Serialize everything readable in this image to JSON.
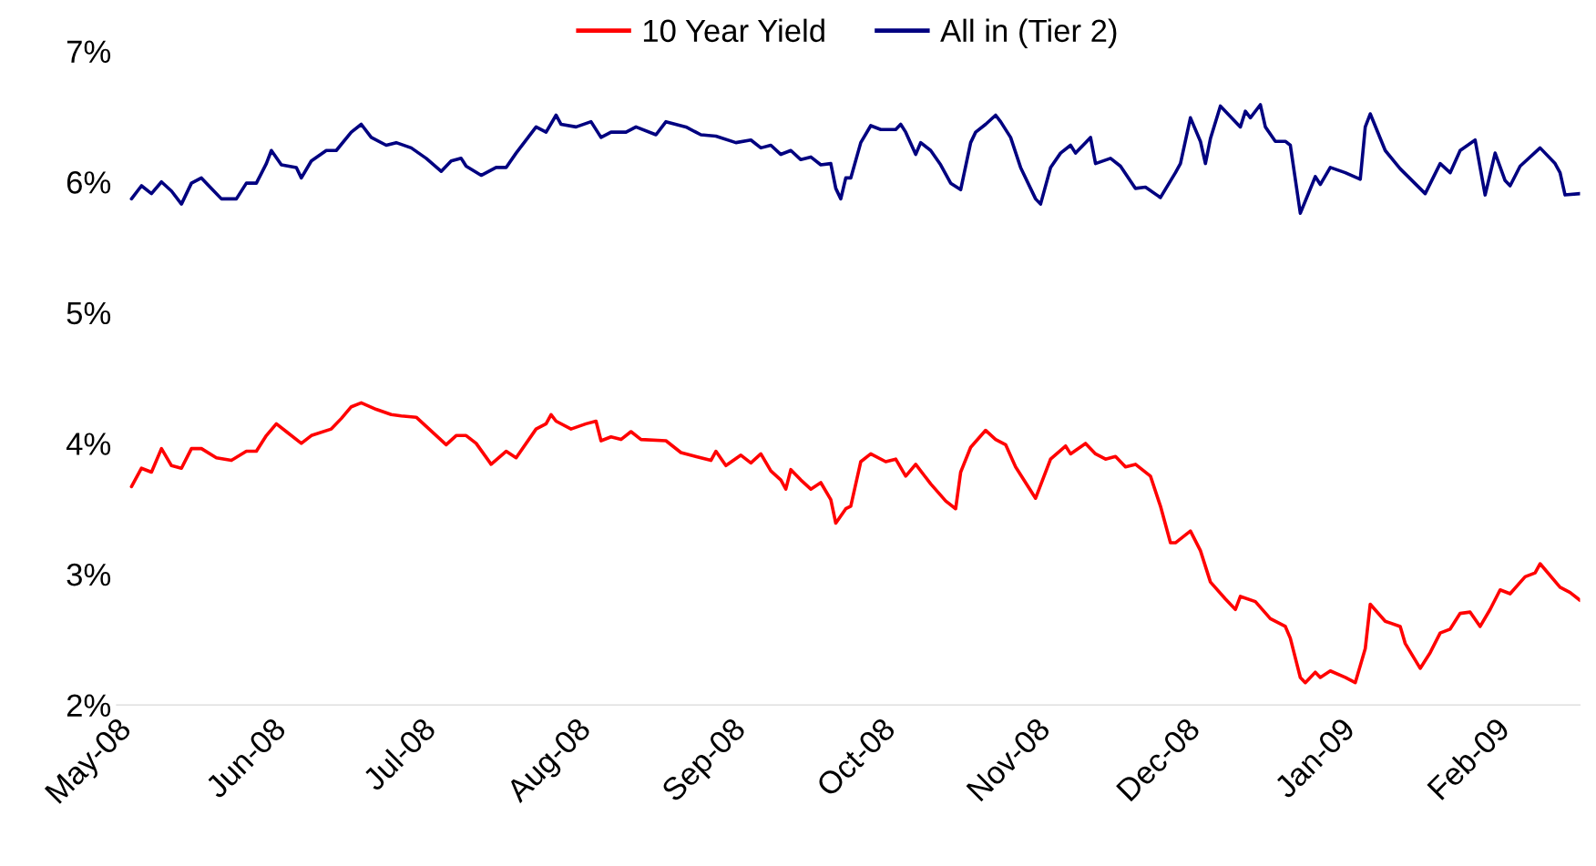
{
  "chart_data": {
    "type": "line",
    "legend": "top",
    "grid": false,
    "marker": "none",
    "line_style": "solid",
    "xticks": [
      {
        "value": "2008-05-01",
        "label": "May-08"
      },
      {
        "value": "2008-06-01",
        "label": "Jun-08"
      },
      {
        "value": "2008-07-01",
        "label": "Jul-08"
      },
      {
        "value": "2008-08-01",
        "label": "Aug-08"
      },
      {
        "value": "2008-09-01",
        "label": "Sep-08"
      },
      {
        "value": "2008-10-01",
        "label": "Oct-08"
      },
      {
        "value": "2008-11-01",
        "label": "Nov-08"
      },
      {
        "value": "2008-12-01",
        "label": "Dec-08"
      },
      {
        "value": "2009-01-01",
        "label": "Jan-09"
      },
      {
        "value": "2009-02-01",
        "label": "Feb-09"
      }
    ],
    "xlim": [
      "2008-05-01",
      "2009-02-18"
    ],
    "ylim": [
      2,
      7
    ],
    "yticks": [
      {
        "value": 2,
        "label": "2%"
      },
      {
        "value": 3,
        "label": "3%"
      },
      {
        "value": 4,
        "label": "4%"
      },
      {
        "value": 5,
        "label": "5%"
      },
      {
        "value": 6,
        "label": "6%"
      },
      {
        "value": 7,
        "label": "7%"
      }
    ],
    "series": [
      {
        "name": "10 Year Yield",
        "color": "#ff0000",
        "x": [
          "2008-05-04",
          "2008-05-06",
          "2008-05-08",
          "2008-05-10",
          "2008-05-12",
          "2008-05-14",
          "2008-05-16",
          "2008-05-18",
          "2008-05-21",
          "2008-05-24",
          "2008-05-27",
          "2008-05-29",
          "2008-05-31",
          "2008-06-02",
          "2008-06-04",
          "2008-06-07",
          "2008-06-09",
          "2008-06-13",
          "2008-06-15",
          "2008-06-17",
          "2008-06-19",
          "2008-06-22",
          "2008-06-25",
          "2008-06-27",
          "2008-06-30",
          "2008-07-06",
          "2008-07-08",
          "2008-07-10",
          "2008-07-12",
          "2008-07-15",
          "2008-07-18",
          "2008-07-20",
          "2008-07-24",
          "2008-07-26",
          "2008-07-27",
          "2008-07-28",
          "2008-07-31",
          "2008-08-03",
          "2008-08-05",
          "2008-08-06",
          "2008-08-08",
          "2008-08-10",
          "2008-08-12",
          "2008-08-14",
          "2008-08-19",
          "2008-08-22",
          "2008-08-28",
          "2008-08-29",
          "2008-08-31",
          "2008-09-03",
          "2008-09-05",
          "2008-09-07",
          "2008-09-09",
          "2008-09-11",
          "2008-09-12",
          "2008-09-13",
          "2008-09-15",
          "2008-09-17",
          "2008-09-19",
          "2008-09-21",
          "2008-09-22",
          "2008-09-24",
          "2008-09-25",
          "2008-09-27",
          "2008-09-29",
          "2008-10-02",
          "2008-10-04",
          "2008-10-06",
          "2008-10-08",
          "2008-10-11",
          "2008-10-14",
          "2008-10-16",
          "2008-10-17",
          "2008-10-19",
          "2008-10-22",
          "2008-10-24",
          "2008-10-26",
          "2008-10-28",
          "2008-11-01",
          "2008-11-04",
          "2008-11-07",
          "2008-11-08",
          "2008-11-11",
          "2008-11-13",
          "2008-11-15",
          "2008-11-17",
          "2008-11-19",
          "2008-11-21",
          "2008-11-24",
          "2008-11-26",
          "2008-11-28",
          "2008-11-29",
          "2008-12-02",
          "2008-12-04",
          "2008-12-06",
          "2008-12-09",
          "2008-12-11",
          "2008-12-12",
          "2008-12-15",
          "2008-12-18",
          "2008-12-21",
          "2008-12-22",
          "2008-12-24",
          "2008-12-25",
          "2008-12-27",
          "2008-12-28",
          "2008-12-30",
          "2009-01-02",
          "2009-01-04",
          "2009-01-06",
          "2009-01-07",
          "2009-01-10",
          "2009-01-13",
          "2009-01-14",
          "2009-01-17",
          "2009-01-19",
          "2009-01-21",
          "2009-01-23",
          "2009-01-25",
          "2009-01-27",
          "2009-01-29",
          "2009-01-31",
          "2009-02-02",
          "2009-02-04",
          "2009-02-07",
          "2009-02-09",
          "2009-02-10",
          "2009-02-14",
          "2009-02-16",
          "2009-02-18"
        ],
        "values": [
          3.67,
          3.81,
          3.78,
          3.96,
          3.83,
          3.81,
          3.96,
          3.96,
          3.89,
          3.87,
          3.94,
          3.94,
          4.06,
          4.15,
          4.09,
          4.0,
          4.06,
          4.11,
          4.19,
          4.28,
          4.31,
          4.26,
          4.22,
          4.21,
          4.2,
          3.99,
          4.06,
          4.06,
          4.0,
          3.84,
          3.94,
          3.89,
          4.11,
          4.15,
          4.22,
          4.17,
          4.11,
          4.15,
          4.17,
          4.02,
          4.05,
          4.03,
          4.09,
          4.03,
          4.02,
          3.93,
          3.87,
          3.94,
          3.83,
          3.91,
          3.85,
          3.92,
          3.79,
          3.72,
          3.65,
          3.8,
          3.72,
          3.65,
          3.7,
          3.57,
          3.39,
          3.5,
          3.52,
          3.86,
          3.92,
          3.86,
          3.88,
          3.75,
          3.84,
          3.69,
          3.56,
          3.5,
          3.78,
          3.97,
          4.1,
          4.03,
          3.99,
          3.82,
          3.58,
          3.88,
          3.98,
          3.92,
          4.0,
          3.92,
          3.88,
          3.9,
          3.82,
          3.84,
          3.75,
          3.52,
          3.24,
          3.24,
          3.33,
          3.18,
          2.94,
          2.81,
          2.73,
          2.83,
          2.79,
          2.66,
          2.6,
          2.51,
          2.21,
          2.17,
          2.25,
          2.21,
          2.26,
          2.21,
          2.17,
          2.43,
          2.77,
          2.64,
          2.6,
          2.47,
          2.28,
          2.4,
          2.55,
          2.58,
          2.7,
          2.71,
          2.6,
          2.73,
          2.88,
          2.85,
          2.98,
          3.01,
          3.08,
          2.9,
          2.86,
          2.8
        ]
      },
      {
        "name": "All in (Tier 2)",
        "color": "#000080",
        "x": [
          "2008-05-04",
          "2008-05-06",
          "2008-05-08",
          "2008-05-10",
          "2008-05-12",
          "2008-05-14",
          "2008-05-16",
          "2008-05-18",
          "2008-05-20",
          "2008-05-22",
          "2008-05-25",
          "2008-05-27",
          "2008-05-29",
          "2008-05-31",
          "2008-06-01",
          "2008-06-03",
          "2008-06-06",
          "2008-06-07",
          "2008-06-09",
          "2008-06-12",
          "2008-06-14",
          "2008-06-17",
          "2008-06-19",
          "2008-06-21",
          "2008-06-24",
          "2008-06-26",
          "2008-06-29",
          "2008-07-02",
          "2008-07-05",
          "2008-07-07",
          "2008-07-09",
          "2008-07-10",
          "2008-07-13",
          "2008-07-16",
          "2008-07-18",
          "2008-07-20",
          "2008-07-24",
          "2008-07-26",
          "2008-07-28",
          "2008-07-29",
          "2008-08-01",
          "2008-08-04",
          "2008-08-06",
          "2008-08-08",
          "2008-08-11",
          "2008-08-13",
          "2008-08-17",
          "2008-08-19",
          "2008-08-23",
          "2008-08-26",
          "2008-08-29",
          "2008-09-02",
          "2008-09-05",
          "2008-09-07",
          "2008-09-09",
          "2008-09-11",
          "2008-09-13",
          "2008-09-15",
          "2008-09-17",
          "2008-09-19",
          "2008-09-21",
          "2008-09-22",
          "2008-09-23",
          "2008-09-24",
          "2008-09-25",
          "2008-09-27",
          "2008-09-29",
          "2008-10-01",
          "2008-10-04",
          "2008-10-05",
          "2008-10-06",
          "2008-10-08",
          "2008-10-09",
          "2008-10-11",
          "2008-10-13",
          "2008-10-15",
          "2008-10-17",
          "2008-10-19",
          "2008-10-20",
          "2008-10-22",
          "2008-10-24",
          "2008-10-25",
          "2008-10-27",
          "2008-10-29",
          "2008-11-01",
          "2008-11-02",
          "2008-11-04",
          "2008-11-06",
          "2008-11-08",
          "2008-11-09",
          "2008-11-11",
          "2008-11-12",
          "2008-11-13",
          "2008-11-16",
          "2008-11-18",
          "2008-11-21",
          "2008-11-23",
          "2008-11-26",
          "2008-11-29",
          "2008-11-30",
          "2008-12-02",
          "2008-12-04",
          "2008-12-05",
          "2008-12-06",
          "2008-12-08",
          "2008-12-12",
          "2008-12-13",
          "2008-12-14",
          "2008-12-16",
          "2008-12-17",
          "2008-12-19",
          "2008-12-21",
          "2008-12-22",
          "2008-12-24",
          "2008-12-27",
          "2008-12-28",
          "2008-12-30",
          "2009-01-02",
          "2009-01-05",
          "2009-01-06",
          "2009-01-07",
          "2009-01-10",
          "2009-01-13",
          "2009-01-18",
          "2009-01-21",
          "2009-01-23",
          "2009-01-25",
          "2009-01-28",
          "2009-01-30",
          "2009-02-01",
          "2009-02-03",
          "2009-02-04",
          "2009-02-06",
          "2009-02-10",
          "2009-02-13",
          "2009-02-14",
          "2009-02-15",
          "2009-02-18"
        ],
        "values": [
          5.87,
          5.97,
          5.91,
          6.0,
          5.93,
          5.83,
          5.99,
          6.03,
          5.95,
          5.87,
          5.87,
          5.99,
          5.99,
          6.14,
          6.24,
          6.13,
          6.11,
          6.03,
          6.16,
          6.24,
          6.24,
          6.38,
          6.44,
          6.34,
          6.28,
          6.3,
          6.26,
          6.18,
          6.08,
          6.16,
          6.18,
          6.12,
          6.05,
          6.11,
          6.11,
          6.22,
          6.42,
          6.38,
          6.51,
          6.44,
          6.42,
          6.46,
          6.34,
          6.38,
          6.38,
          6.42,
          6.36,
          6.46,
          6.42,
          6.36,
          6.35,
          6.3,
          6.32,
          6.26,
          6.28,
          6.21,
          6.24,
          6.17,
          6.19,
          6.13,
          6.14,
          5.95,
          5.87,
          6.03,
          6.03,
          6.3,
          6.43,
          6.4,
          6.4,
          6.44,
          6.38,
          6.21,
          6.3,
          6.24,
          6.13,
          5.99,
          5.94,
          6.3,
          6.38,
          6.44,
          6.51,
          6.46,
          6.34,
          6.11,
          5.87,
          5.83,
          6.11,
          6.22,
          6.28,
          6.22,
          6.3,
          6.34,
          6.14,
          6.18,
          6.12,
          5.95,
          5.96,
          5.88,
          6.07,
          6.14,
          6.49,
          6.31,
          6.14,
          6.33,
          6.58,
          6.42,
          6.54,
          6.49,
          6.59,
          6.42,
          6.31,
          6.31,
          6.28,
          5.76,
          6.04,
          5.98,
          6.11,
          6.07,
          6.02,
          6.42,
          6.52,
          6.24,
          6.1,
          5.91,
          6.14,
          6.07,
          6.24,
          6.32,
          5.9,
          6.22,
          6.01,
          5.97,
          6.12,
          6.26,
          6.14,
          6.07,
          5.9,
          5.91
        ]
      }
    ]
  }
}
